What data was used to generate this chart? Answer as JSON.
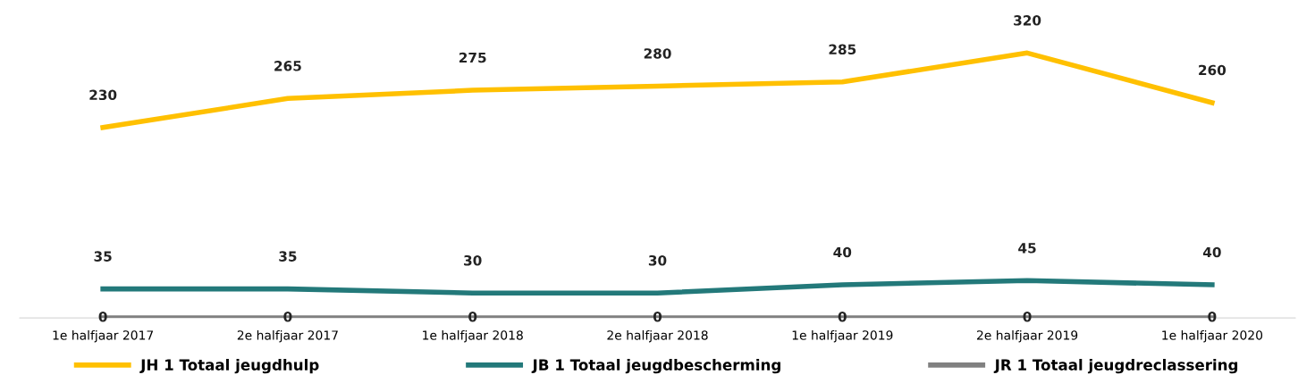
{
  "chart_data": {
    "type": "line",
    "categories": [
      "1e halfjaar 2017",
      "2e halfjaar 2017",
      "1e halfjaar 2018",
      "2e halfjaar 2018",
      "1e halfjaar 2019",
      "2e halfjaar 2019",
      "1e halfjaar 2020"
    ],
    "series": [
      {
        "name": "JH 1 Totaal jeugdhulp",
        "color": "#ffc000",
        "values": [
          230,
          265,
          275,
          280,
          285,
          320,
          260
        ]
      },
      {
        "name": "JB 1 Totaal jeugdbescherming",
        "color": "#23797a",
        "values": [
          35,
          35,
          30,
          30,
          40,
          45,
          40
        ]
      },
      {
        "name": "JR 1 Totaal jeugdreclassering",
        "color": "#808080",
        "values": [
          0,
          0,
          0,
          0,
          0,
          0,
          0
        ]
      }
    ],
    "data_labels": true,
    "legend": "bottom",
    "grid": false,
    "marker": "none",
    "line_style": "solid"
  }
}
